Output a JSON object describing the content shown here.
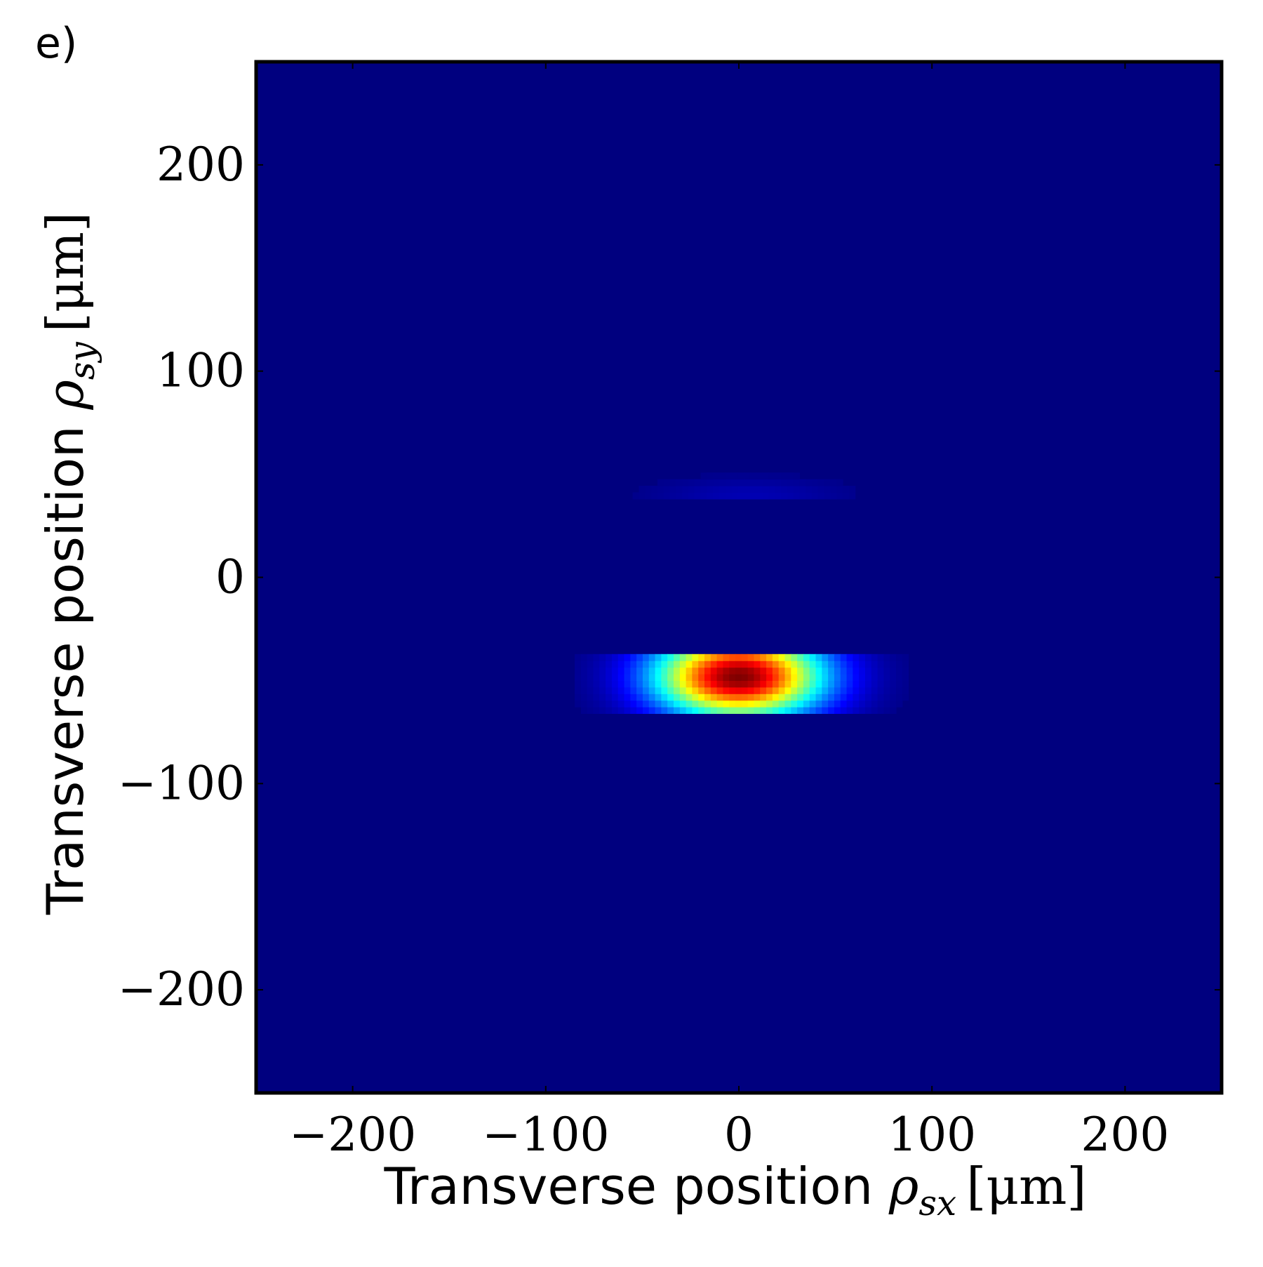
{
  "panel_label": "e)",
  "chart_data": {
    "type": "heatmap",
    "title": "",
    "xlabel": {
      "text": "Transverse position ",
      "symbol": "ρ",
      "subscript": "sx",
      "unit": "[μm]"
    },
    "ylabel": {
      "text": "Transverse position ",
      "symbol": "ρ",
      "subscript": "sy",
      "unit": "[μm]"
    },
    "xlim": [
      -250,
      250
    ],
    "ylim": [
      -250,
      250
    ],
    "x_ticks": [
      -200,
      -100,
      0,
      100,
      200
    ],
    "y_ticks": [
      -200,
      -100,
      0,
      100,
      200
    ],
    "x_tick_labels": [
      "−200",
      "−100",
      "0",
      "100",
      "200"
    ],
    "y_tick_labels": [
      "−200",
      "−100",
      "0",
      "100",
      "200"
    ],
    "colormap": "jet",
    "background_color": "#00007f",
    "grid": false,
    "features": [
      {
        "name": "main band",
        "x_range": [
          -85,
          90
        ],
        "y_range": [
          -66,
          -38
        ],
        "peak_x": 0,
        "peak_y": -48,
        "peak_intensity": 1.0,
        "sigma_x": 30,
        "sigma_y": 14
      },
      {
        "name": "faint band",
        "x_range": [
          -55,
          60
        ],
        "y_range": [
          38,
          52
        ],
        "peak_x": 5,
        "peak_y": 40,
        "peak_intensity": 0.05,
        "sigma_x": 35,
        "sigma_y": 6
      }
    ]
  }
}
